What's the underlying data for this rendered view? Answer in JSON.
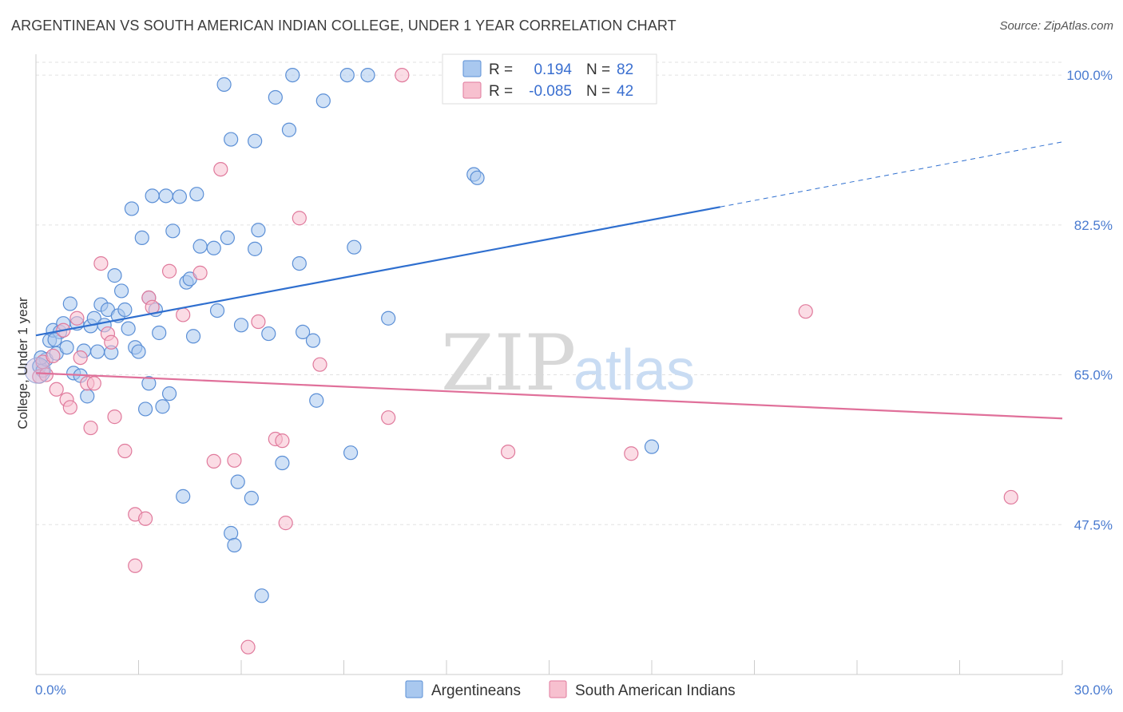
{
  "title": "ARGENTINEAN VS SOUTH AMERICAN INDIAN COLLEGE, UNDER 1 YEAR CORRELATION CHART",
  "source": "Source: ZipAtlas.com",
  "watermark": {
    "zip": "ZIP",
    "atlas": "atlas"
  },
  "legend": {
    "r_label": "R =",
    "n_label": "N =",
    "series": [
      {
        "name": "Argentineans",
        "r": "0.194",
        "n": "82",
        "fill": "#a9c8ef",
        "stroke": "#5b8fd6"
      },
      {
        "name": "South American Indians",
        "r": "-0.085",
        "n": "42",
        "fill": "#f7c0cf",
        "stroke": "#e07a9c"
      }
    ]
  },
  "chart_data": {
    "type": "scatter",
    "title": "ARGENTINEAN VS SOUTH AMERICAN INDIAN COLLEGE, UNDER 1 YEAR CORRELATION CHART",
    "xlabel": "",
    "ylabel": "College, Under 1 year",
    "xlim": [
      0,
      30
    ],
    "ylim": [
      30.0,
      101.5
    ],
    "x_tick_labels": [
      "0.0%",
      "30.0%"
    ],
    "y_ticks": [
      {
        "value": 100.0,
        "label": "100.0%"
      },
      {
        "value": 82.5,
        "label": "82.5%"
      },
      {
        "value": 65.0,
        "label": "65.0%"
      },
      {
        "value": 47.5,
        "label": "47.5%"
      }
    ],
    "series": [
      {
        "name": "Argentineans",
        "color": "#5b8fd6",
        "fill": "#a9c8ef",
        "trend": {
          "x0": 0.0,
          "y0": 69.6,
          "x1": 20.0,
          "y1": 84.6,
          "dash_to_x": 30.0,
          "dash_to_y": 92.2,
          "color": "#2f6fcf"
        },
        "points": [
          [
            0.1,
            66.0
          ],
          [
            0.2,
            65.5
          ],
          [
            0.3,
            66.8
          ],
          [
            0.4,
            69.0
          ],
          [
            0.5,
            70.2
          ],
          [
            0.6,
            67.5
          ],
          [
            0.7,
            70.0
          ],
          [
            0.8,
            71.0
          ],
          [
            0.9,
            68.2
          ],
          [
            1.0,
            73.3
          ],
          [
            1.1,
            65.2
          ],
          [
            1.2,
            71.0
          ],
          [
            1.3,
            64.9
          ],
          [
            1.4,
            67.8
          ],
          [
            1.5,
            62.5
          ],
          [
            1.6,
            70.7
          ],
          [
            1.7,
            71.6
          ],
          [
            1.8,
            67.7
          ],
          [
            1.9,
            73.2
          ],
          [
            2.0,
            70.8
          ],
          [
            2.1,
            72.6
          ],
          [
            2.2,
            67.6
          ],
          [
            2.3,
            76.6
          ],
          [
            2.4,
            71.9
          ],
          [
            2.5,
            74.8
          ],
          [
            2.6,
            72.6
          ],
          [
            2.7,
            70.4
          ],
          [
            2.8,
            84.4
          ],
          [
            2.9,
            68.2
          ],
          [
            3.0,
            67.7
          ],
          [
            3.1,
            81.0
          ],
          [
            3.2,
            61.0
          ],
          [
            3.3,
            74.0
          ],
          [
            3.3,
            64.0
          ],
          [
            3.4,
            85.9
          ],
          [
            3.5,
            72.6
          ],
          [
            3.6,
            69.9
          ],
          [
            3.7,
            61.3
          ],
          [
            3.8,
            85.9
          ],
          [
            3.9,
            62.8
          ],
          [
            4.0,
            81.8
          ],
          [
            4.2,
            85.8
          ],
          [
            4.3,
            50.8
          ],
          [
            4.4,
            75.8
          ],
          [
            4.5,
            76.2
          ],
          [
            4.6,
            69.5
          ],
          [
            4.7,
            86.1
          ],
          [
            4.8,
            80.0
          ],
          [
            5.2,
            79.8
          ],
          [
            5.3,
            72.5
          ],
          [
            5.5,
            98.9
          ],
          [
            5.6,
            81.0
          ],
          [
            5.7,
            46.5
          ],
          [
            5.7,
            92.5
          ],
          [
            5.8,
            45.1
          ],
          [
            5.9,
            52.5
          ],
          [
            6.0,
            70.8
          ],
          [
            6.3,
            50.6
          ],
          [
            6.4,
            79.7
          ],
          [
            6.4,
            92.3
          ],
          [
            6.5,
            81.9
          ],
          [
            6.6,
            39.2
          ],
          [
            6.8,
            69.8
          ],
          [
            7.0,
            97.4
          ],
          [
            7.2,
            54.7
          ],
          [
            7.4,
            93.6
          ],
          [
            7.5,
            100.0
          ],
          [
            7.7,
            78.0
          ],
          [
            7.8,
            70.0
          ],
          [
            8.1,
            69.0
          ],
          [
            8.2,
            62.0
          ],
          [
            8.4,
            97.0
          ],
          [
            9.1,
            100.0
          ],
          [
            9.2,
            55.9
          ],
          [
            9.3,
            79.9
          ],
          [
            9.7,
            100.0
          ],
          [
            10.3,
            71.6
          ],
          [
            12.8,
            88.4
          ],
          [
            12.9,
            88.0
          ],
          [
            18.0,
            56.6
          ],
          [
            0.15,
            67.0
          ],
          [
            0.55,
            69.1
          ]
        ]
      },
      {
        "name": "South American Indians",
        "color": "#e07a9c",
        "fill": "#f7c0cf",
        "trend": {
          "x0": 0.0,
          "y0": 65.2,
          "x1": 30.0,
          "y1": 59.9,
          "color": "#e0709a"
        },
        "points": [
          [
            0.1,
            64.8
          ],
          [
            0.2,
            66.5
          ],
          [
            0.3,
            65.0
          ],
          [
            0.5,
            67.2
          ],
          [
            0.6,
            63.3
          ],
          [
            0.8,
            70.2
          ],
          [
            0.9,
            62.1
          ],
          [
            1.0,
            61.2
          ],
          [
            1.2,
            71.6
          ],
          [
            1.3,
            67.0
          ],
          [
            1.5,
            64.0
          ],
          [
            1.6,
            58.8
          ],
          [
            1.7,
            64.0
          ],
          [
            1.9,
            78.0
          ],
          [
            2.1,
            69.8
          ],
          [
            2.2,
            68.8
          ],
          [
            2.3,
            60.1
          ],
          [
            2.6,
            56.1
          ],
          [
            2.9,
            48.7
          ],
          [
            2.9,
            42.7
          ],
          [
            3.2,
            48.2
          ],
          [
            3.3,
            74.0
          ],
          [
            3.4,
            72.9
          ],
          [
            3.9,
            77.1
          ],
          [
            4.3,
            72.0
          ],
          [
            4.8,
            76.9
          ],
          [
            5.2,
            54.9
          ],
          [
            5.4,
            89.0
          ],
          [
            5.8,
            55.0
          ],
          [
            6.2,
            33.2
          ],
          [
            6.5,
            71.2
          ],
          [
            7.0,
            57.5
          ],
          [
            7.2,
            57.3
          ],
          [
            7.3,
            47.7
          ],
          [
            7.7,
            83.3
          ],
          [
            8.3,
            66.2
          ],
          [
            10.3,
            60.0
          ],
          [
            10.7,
            100.0
          ],
          [
            13.8,
            56.0
          ],
          [
            17.4,
            55.8
          ],
          [
            22.5,
            72.4
          ],
          [
            28.5,
            50.7
          ]
        ]
      }
    ]
  }
}
